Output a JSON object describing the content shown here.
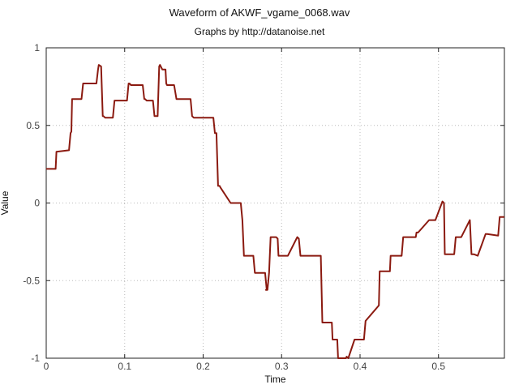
{
  "chart_data": {
    "type": "line",
    "title": "Waveform of AKWF_vgame_0068.wav",
    "subtitle": "Graphs by http://datanoise.net",
    "xlabel": "Time",
    "ylabel": "Value",
    "xlim": [
      0,
      0.584
    ],
    "ylim": [
      -1,
      1
    ],
    "x_ticks": [
      0,
      0.1,
      0.2,
      0.3,
      0.4,
      0.5
    ],
    "x_tick_labels": [
      "0",
      "0.1",
      "0.2",
      "0.3",
      "0.4",
      "0.5"
    ],
    "y_ticks": [
      1,
      0.5,
      0,
      -0.5,
      -1
    ],
    "y_tick_labels": [
      "1",
      "0.5",
      "0",
      "-0.5",
      "-1"
    ],
    "grid": true,
    "line_color": "#8b1a10",
    "series": [
      {
        "x": [
          0,
          0.001,
          0.012,
          0.013,
          0.029,
          0.031,
          0.032,
          0.033,
          0.045,
          0.047,
          0.048,
          0.05,
          0.064,
          0.066,
          0.067,
          0.07,
          0.072,
          0.073,
          0.075,
          0.085,
          0.087,
          0.103,
          0.105,
          0.106,
          0.108,
          0.123,
          0.125,
          0.126,
          0.128,
          0.136,
          0.138,
          0.142,
          0.144,
          0.145,
          0.148,
          0.152,
          0.153,
          0.154,
          0.163,
          0.166,
          0.184,
          0.186,
          0.188,
          0.196,
          0.198,
          0.213,
          0.215,
          0.217,
          0.219,
          0.221,
          0.222,
          0.235,
          0.237,
          0.248,
          0.25,
          0.25,
          0.252,
          0.253,
          0.255,
          0.263,
          0.264,
          0.266,
          0.279,
          0.281,
          0.28,
          0.282,
          0.284,
          0.286,
          0.293,
          0.295,
          0.296,
          0.3,
          0.303,
          0.304,
          0.308,
          0.319,
          0.32,
          0.322,
          0.324,
          0.327,
          0.331,
          0.333,
          0.35,
          0.352,
          0.364,
          0.365,
          0.371,
          0.372,
          0.382,
          0.383,
          0.385,
          0.393,
          0.395,
          0.405,
          0.407,
          0.424,
          0.425,
          0.438,
          0.439,
          0.441,
          0.453,
          0.455,
          0.469,
          0.471,
          0.472,
          0.474,
          0.488,
          0.489,
          0.491,
          0.496,
          0.505,
          0.507,
          0.508,
          0.51,
          0.52,
          0.522,
          0.527,
          0.529,
          0.54,
          0.542,
          0.545,
          0.55,
          0.56,
          0.562,
          0.576,
          0.578,
          0.584
        ],
        "y": [
          0.22,
          0.22,
          0.22,
          0.33,
          0.34,
          0.45,
          0.46,
          0.67,
          0.67,
          0.77,
          0.77,
          0.77,
          0.77,
          0.86,
          0.89,
          0.88,
          0.56,
          0.56,
          0.55,
          0.55,
          0.66,
          0.66,
          0.77,
          0.77,
          0.76,
          0.76,
          0.67,
          0.67,
          0.66,
          0.66,
          0.56,
          0.56,
          0.88,
          0.89,
          0.86,
          0.86,
          0.77,
          0.76,
          0.76,
          0.67,
          0.67,
          0.56,
          0.55,
          0.55,
          0.55,
          0.55,
          0.45,
          0.45,
          0.11,
          0.11,
          0.1,
          0.0,
          0.0,
          0.0,
          -0.11,
          -0.11,
          -0.34,
          -0.34,
          -0.34,
          -0.34,
          -0.34,
          -0.45,
          -0.45,
          -0.56,
          -0.56,
          -0.56,
          -0.45,
          -0.22,
          -0.22,
          -0.23,
          -0.34,
          -0.34,
          -0.34,
          -0.34,
          -0.34,
          -0.23,
          -0.22,
          -0.23,
          -0.34,
          -0.34,
          -0.34,
          -0.34,
          -0.34,
          -0.77,
          -0.77,
          -0.88,
          -0.88,
          -1.0,
          -1.0,
          -0.99,
          -1.0,
          -0.88,
          -0.88,
          -0.88,
          -0.76,
          -0.66,
          -0.44,
          -0.44,
          -0.34,
          -0.34,
          -0.34,
          -0.22,
          -0.22,
          -0.22,
          -0.19,
          -0.19,
          -0.11,
          -0.11,
          -0.11,
          -0.11,
          0.01,
          0.0,
          -0.33,
          -0.33,
          -0.33,
          -0.22,
          -0.22,
          -0.22,
          -0.11,
          -0.33,
          -0.33,
          -0.34,
          -0.2,
          -0.2,
          -0.21,
          -0.09,
          -0.09
        ]
      }
    ]
  }
}
